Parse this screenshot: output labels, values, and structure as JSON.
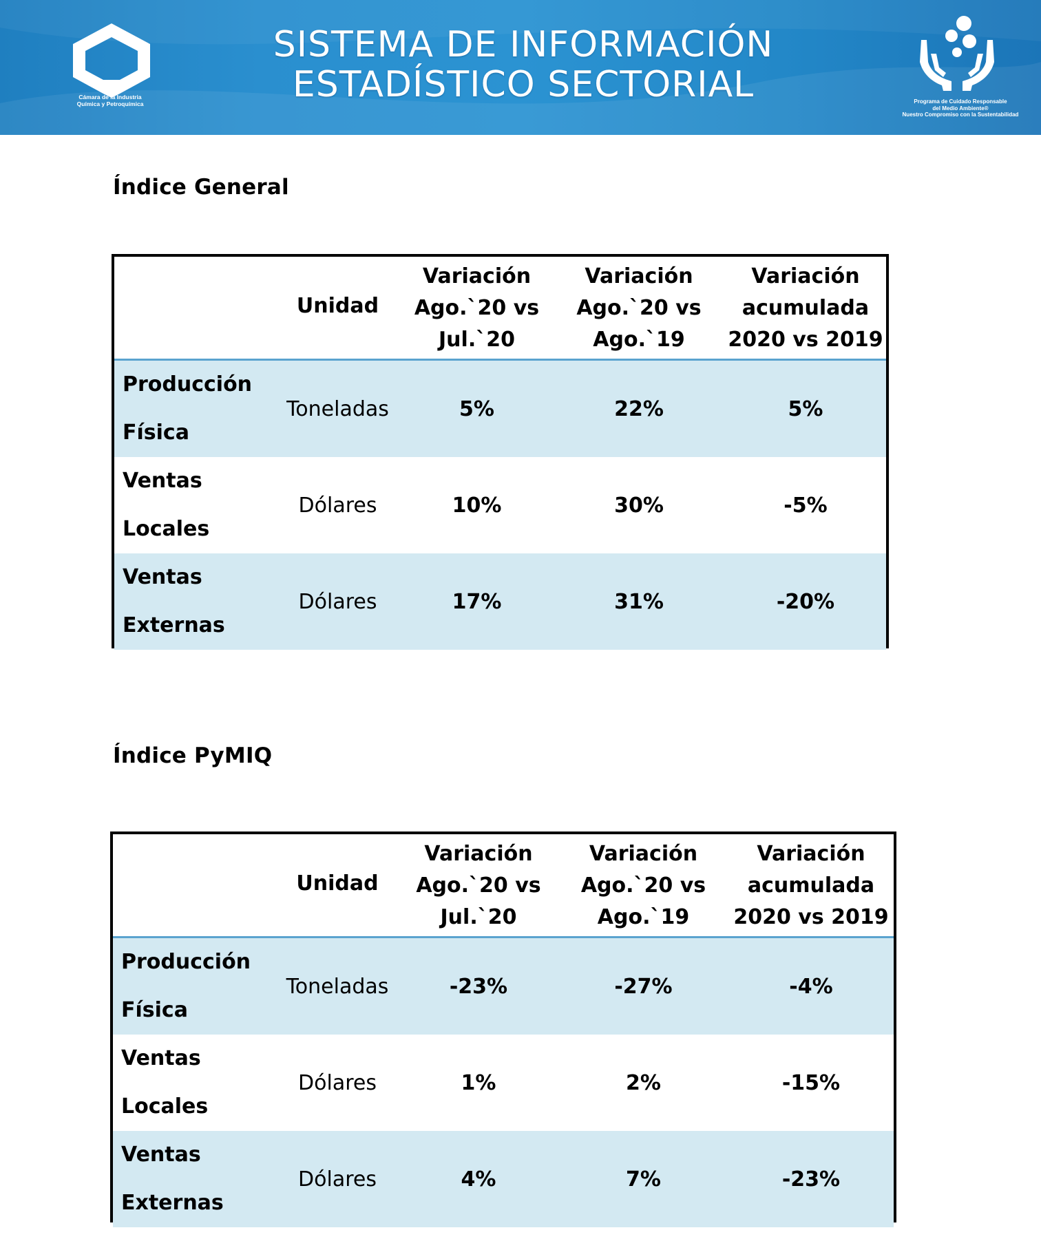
{
  "header": {
    "title_line1": "SISTEMA DE INFORMACIÓN",
    "title_line2": "ESTADÍSTICO SECTORIAL",
    "left_logo_caption_line1": "Cámara de la Industria",
    "left_logo_caption_line2": "Química y Petroquímica",
    "right_logo_caption_line1": "Programa de Cuidado Responsable",
    "right_logo_caption_line2": "del Medio Ambiente®",
    "right_logo_caption_line3": "Nuestro Compromiso con la Sustentabilidad"
  },
  "tables": [
    {
      "title": "Índice General",
      "headers": {
        "unidad": "Unidad",
        "col1_line1": "Variación",
        "col1_line2": "Ago.`20 vs",
        "col1_line3": "Jul.`20",
        "col2_line1": "Variación",
        "col2_line2": "Ago.`20 vs",
        "col2_line3": "Ago.`19",
        "col3_line1": "Variación",
        "col3_line2": "acumulada",
        "col3_line3": "2020 vs 2019"
      },
      "rows": [
        {
          "label_line1": "Producción",
          "label_line2": "Física",
          "unit": "Toneladas",
          "v1": "5%",
          "v2": "22%",
          "v3": "5%"
        },
        {
          "label_line1": "Ventas",
          "label_line2": "Locales",
          "unit": "Dólares",
          "v1": "10%",
          "v2": "30%",
          "v3": "-5%"
        },
        {
          "label_line1": "Ventas",
          "label_line2": "Externas",
          "unit": "Dólares",
          "v1": "17%",
          "v2": "31%",
          "v3": "-20%"
        }
      ]
    },
    {
      "title": "Índice PyMIQ",
      "headers": {
        "unidad": "Unidad",
        "col1_line1": "Variación",
        "col1_line2": "Ago.`20 vs",
        "col1_line3": "Jul.`20",
        "col2_line1": "Variación",
        "col2_line2": "Ago.`20 vs",
        "col2_line3": "Ago.`19",
        "col3_line1": "Variación",
        "col3_line2": "acumulada",
        "col3_line3": "2020 vs 2019"
      },
      "rows": [
        {
          "label_line1": "Producción",
          "label_line2": "Física",
          "unit": "Toneladas",
          "v1": "-23%",
          "v2": "-27%",
          "v3": "-4%"
        },
        {
          "label_line1": "Ventas",
          "label_line2": "Locales",
          "unit": "Dólares",
          "v1": "1%",
          "v2": "2%",
          "v3": "-15%"
        },
        {
          "label_line1": "Ventas",
          "label_line2": "Externas",
          "unit": "Dólares",
          "v1": "4%",
          "v2": "7%",
          "v3": "-23%"
        }
      ]
    }
  ],
  "colors": {
    "banner_blue": "#2b93d2",
    "row_shade": "#d3e9f2",
    "header_rule": "#5aa3cf"
  }
}
